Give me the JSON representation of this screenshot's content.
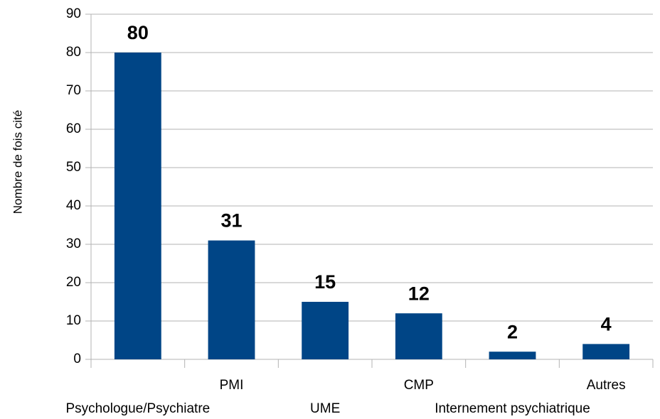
{
  "chart_data": {
    "type": "bar",
    "y_label": "Nombre de fois cité",
    "categories": [
      "Psychologue/Psychiatre",
      "PMI",
      "UME",
      "CMP",
      "Internement psychiatrique",
      "Autres"
    ],
    "values": [
      80,
      31,
      15,
      12,
      2,
      4
    ],
    "color": "#004586",
    "ylim": [
      0,
      90
    ],
    "yticks": [
      0,
      10,
      20,
      30,
      40,
      50,
      60,
      70,
      80,
      90
    ],
    "grid": true
  }
}
